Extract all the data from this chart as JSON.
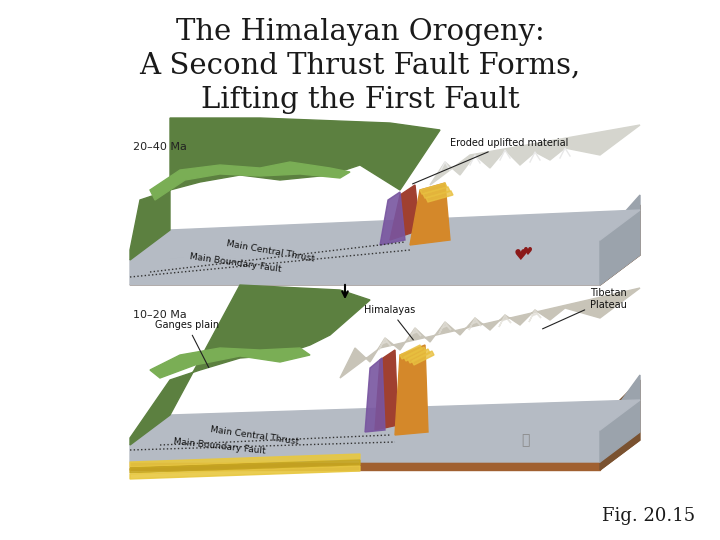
{
  "title_line1": "The Himalayan Orogeny:",
  "title_line2": "A Second Thrust Fault Forms,",
  "title_line3": "Lifting the First Fault",
  "fig_label": "Fig. 20.15",
  "title_fontsize": 21,
  "title_color": "#1a1a1a",
  "background_color": "#ffffff",
  "fig_label_fontsize": 13,
  "top_time": "20–40 Ma",
  "bot_time": "10–20 Ma"
}
